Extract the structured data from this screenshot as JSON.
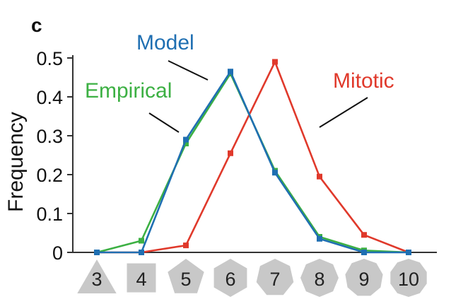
{
  "chart_data": {
    "type": "line",
    "panel_label": "c",
    "xlabel": "",
    "ylabel": "Frequency",
    "x": [
      3,
      4,
      5,
      6,
      7,
      8,
      9,
      10
    ],
    "x_tick_labels": [
      "3",
      "4",
      "5",
      "6",
      "7",
      "8",
      "9",
      "10"
    ],
    "x_tick_shapes": [
      "triangle",
      "square",
      "pentagon",
      "hexagon",
      "heptagon",
      "octagon",
      "nonagon",
      "decagon"
    ],
    "y_ticks": [
      "0",
      "0.1",
      "0.2",
      "0.3",
      "0.4",
      "0.5"
    ],
    "ylim": [
      0,
      0.5
    ],
    "grid": false,
    "series": [
      {
        "name": "Empirical",
        "color": "#3cb043",
        "values": [
          0,
          0.03,
          0.28,
          0.46,
          0.21,
          0.04,
          0.005,
          0
        ]
      },
      {
        "name": "Model",
        "color": "#1f6fb2",
        "values": [
          0,
          0,
          0.29,
          0.465,
          0.205,
          0.035,
          0,
          0
        ]
      },
      {
        "name": "Mitotic",
        "color": "#e0392b",
        "values": [
          0,
          0,
          0.018,
          0.255,
          0.49,
          0.195,
          0.045,
          0
        ]
      }
    ],
    "annotations": [
      {
        "text": "Model",
        "color": "#1f6fb2"
      },
      {
        "text": "Empirical",
        "color": "#3cb043"
      },
      {
        "text": "Mitotic",
        "color": "#e0392b"
      }
    ]
  }
}
